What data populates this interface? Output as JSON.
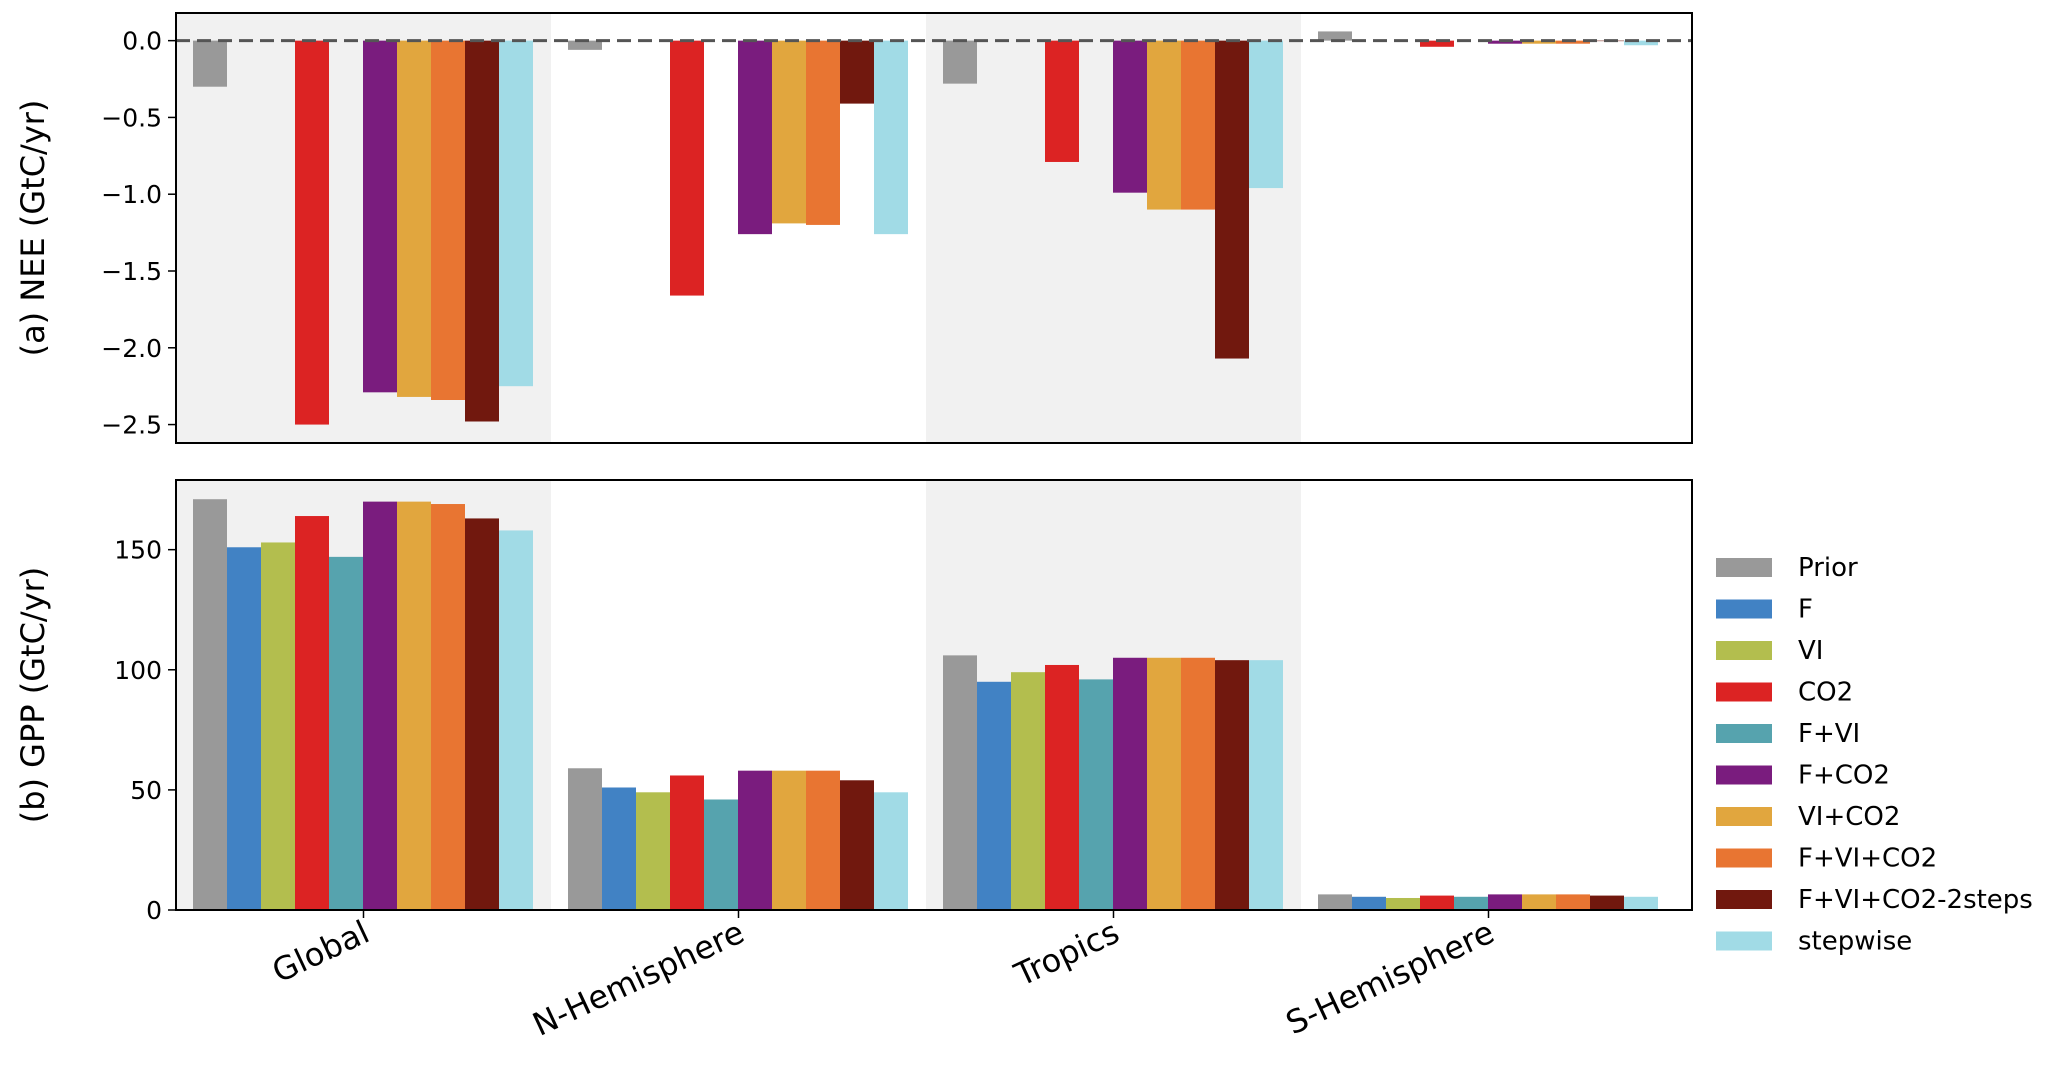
{
  "chart_data": [
    {
      "type": "bar",
      "panel": "top",
      "ylabel": "(a) NEE (GtC/yr)",
      "ylim": [
        -2.62,
        0.18
      ],
      "yticks": [
        0.0,
        -0.5,
        -1.0,
        -1.5,
        -2.0,
        -2.5
      ],
      "ytick_labels": [
        "0.0",
        "−0.5",
        "−1.0",
        "−1.5",
        "−2.0",
        "−2.5"
      ],
      "zero_line": "dashed",
      "categories": [
        "Global",
        "N-Hemisphere",
        "Tropics",
        "S-Hemisphere"
      ],
      "shaded_categories": [
        "Global",
        "Tropics"
      ],
      "series": [
        {
          "name": "Prior",
          "color": "#999999",
          "values": [
            -0.3,
            -0.06,
            -0.28,
            0.06
          ]
        },
        {
          "name": "F",
          "color": "#4182C4",
          "values": [
            null,
            null,
            null,
            null
          ]
        },
        {
          "name": "VI",
          "color": "#B3BE4E",
          "values": [
            null,
            null,
            null,
            null
          ]
        },
        {
          "name": "CO2",
          "color": "#DC2323",
          "values": [
            -2.5,
            -1.66,
            -0.79,
            -0.04
          ]
        },
        {
          "name": "F+VI",
          "color": "#56A3AE",
          "values": [
            null,
            null,
            null,
            null
          ]
        },
        {
          "name": "F+CO2",
          "color": "#7A1C7E",
          "values": [
            -2.29,
            -1.26,
            -0.99,
            -0.02
          ]
        },
        {
          "name": "VI+CO2",
          "color": "#E1A63E",
          "values": [
            -2.32,
            -1.19,
            -1.1,
            -0.02
          ]
        },
        {
          "name": "F+VI+CO2",
          "color": "#E87532",
          "values": [
            -2.34,
            -1.2,
            -1.1,
            -0.02
          ]
        },
        {
          "name": "F+VI+CO2-2steps",
          "color": "#71180E",
          "values": [
            -2.48,
            -0.41,
            -2.07,
            0.0
          ]
        },
        {
          "name": "stepwise",
          "color": "#A1DBE6",
          "values": [
            -2.25,
            -1.26,
            -0.96,
            -0.03
          ]
        }
      ]
    },
    {
      "type": "bar",
      "panel": "bottom",
      "ylabel": "(b) GPP (GtC/yr)",
      "ylim": [
        0,
        179
      ],
      "yticks": [
        0,
        50,
        100,
        150
      ],
      "ytick_labels": [
        "0",
        "50",
        "100",
        "150"
      ],
      "categories": [
        "Global",
        "N-Hemisphere",
        "Tropics",
        "S-Hemisphere"
      ],
      "shaded_categories": [
        "Global",
        "Tropics"
      ],
      "series": [
        {
          "name": "Prior",
          "color": "#999999",
          "values": [
            171,
            59,
            106,
            6.5
          ]
        },
        {
          "name": "F",
          "color": "#4182C4",
          "values": [
            151,
            51,
            95,
            5.5
          ]
        },
        {
          "name": "VI",
          "color": "#B3BE4E",
          "values": [
            153,
            49,
            99,
            5.0
          ]
        },
        {
          "name": "CO2",
          "color": "#DC2323",
          "values": [
            164,
            56,
            102,
            6.0
          ]
        },
        {
          "name": "F+VI",
          "color": "#56A3AE",
          "values": [
            147,
            46,
            96,
            5.5
          ]
        },
        {
          "name": "F+CO2",
          "color": "#7A1C7E",
          "values": [
            170,
            58,
            105,
            6.5
          ]
        },
        {
          "name": "VI+CO2",
          "color": "#E1A63E",
          "values": [
            170,
            58,
            105,
            6.5
          ]
        },
        {
          "name": "F+VI+CO2",
          "color": "#E87532",
          "values": [
            169,
            58,
            105,
            6.5
          ]
        },
        {
          "name": "F+VI+CO2-2steps",
          "color": "#71180E",
          "values": [
            163,
            54,
            104,
            6.0
          ]
        },
        {
          "name": "stepwise",
          "color": "#A1DBE6",
          "values": [
            158,
            49,
            104,
            5.5
          ]
        }
      ]
    }
  ],
  "legend": {
    "placement": "right",
    "entries": [
      {
        "label": "Prior",
        "color": "#999999"
      },
      {
        "label": "F",
        "color": "#4182C4"
      },
      {
        "label": "VI",
        "color": "#B3BE4E"
      },
      {
        "label": "CO2",
        "color": "#DC2323"
      },
      {
        "label": "F+VI",
        "color": "#56A3AE"
      },
      {
        "label": "F+CO2",
        "color": "#7A1C7E"
      },
      {
        "label": "VI+CO2",
        "color": "#E1A63E"
      },
      {
        "label": "F+VI+CO2",
        "color": "#E87532"
      },
      {
        "label": "F+VI+CO2-2steps",
        "color": "#71180E"
      },
      {
        "label": "stepwise",
        "color": "#A1DBE6"
      }
    ]
  },
  "shade_color": "#F1F1F1"
}
